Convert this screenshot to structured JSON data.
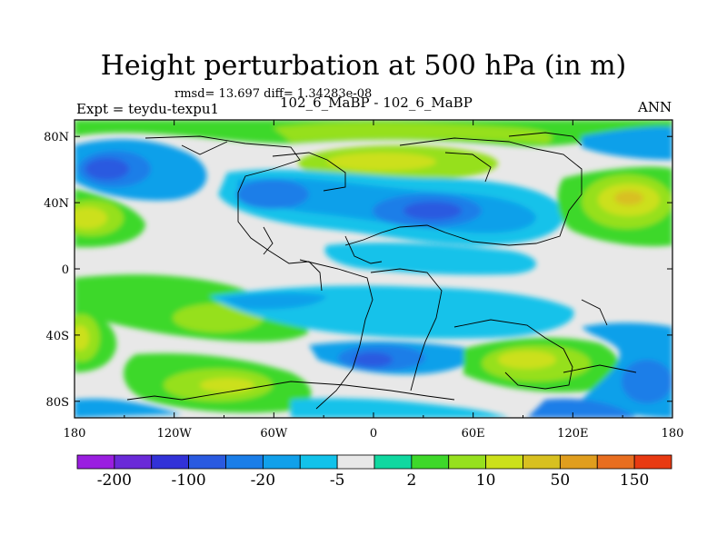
{
  "title": "Height perturbation at 500 hPa (in m)",
  "stats": "rmsd= 13.697  diff= 1.34283e-08",
  "left_label": "Expt = teydu-texpu1",
  "center_label": "102_6_MaBP - 102_6_MaBP",
  "right_label": "ANN",
  "map": {
    "lon_range": [
      -180,
      180
    ],
    "lat_range": [
      -90,
      90
    ],
    "lon_ticks": [
      {
        "value": -180,
        "label": "180"
      },
      {
        "value": -120,
        "label": "120W"
      },
      {
        "value": -60,
        "label": "60W"
      },
      {
        "value": 0,
        "label": "0"
      },
      {
        "value": 60,
        "label": "60E"
      },
      {
        "value": 120,
        "label": "120E"
      },
      {
        "value": 180,
        "label": "180"
      }
    ],
    "lat_ticks": [
      {
        "value": 80,
        "label": "80N"
      },
      {
        "value": 40,
        "label": "40N"
      },
      {
        "value": 0,
        "label": "0"
      },
      {
        "value": -40,
        "label": "40S"
      },
      {
        "value": -80,
        "label": "80S"
      }
    ]
  },
  "colorbar": {
    "colors": [
      "#9a1ee0",
      "#6a2ad8",
      "#3232d8",
      "#2a5ae0",
      "#1a7ee8",
      "#11a0ea",
      "#12c2ea",
      "#e8e8e8",
      "#10d8a0",
      "#3ed82a",
      "#96e01e",
      "#cce01a",
      "#d8c020",
      "#e09e1e",
      "#e86e20",
      "#e83a12"
    ],
    "labels": [
      {
        "after_box": 1,
        "text": "-200"
      },
      {
        "after_box": 3,
        "text": "-100"
      },
      {
        "after_box": 5,
        "text": "-20"
      },
      {
        "after_box": 7,
        "text": "-5"
      },
      {
        "after_box": 9,
        "text": "2"
      },
      {
        "after_box": 11,
        "text": "10"
      },
      {
        "after_box": 13,
        "text": "50"
      },
      {
        "after_box": 15,
        "text": "150"
      }
    ]
  }
}
